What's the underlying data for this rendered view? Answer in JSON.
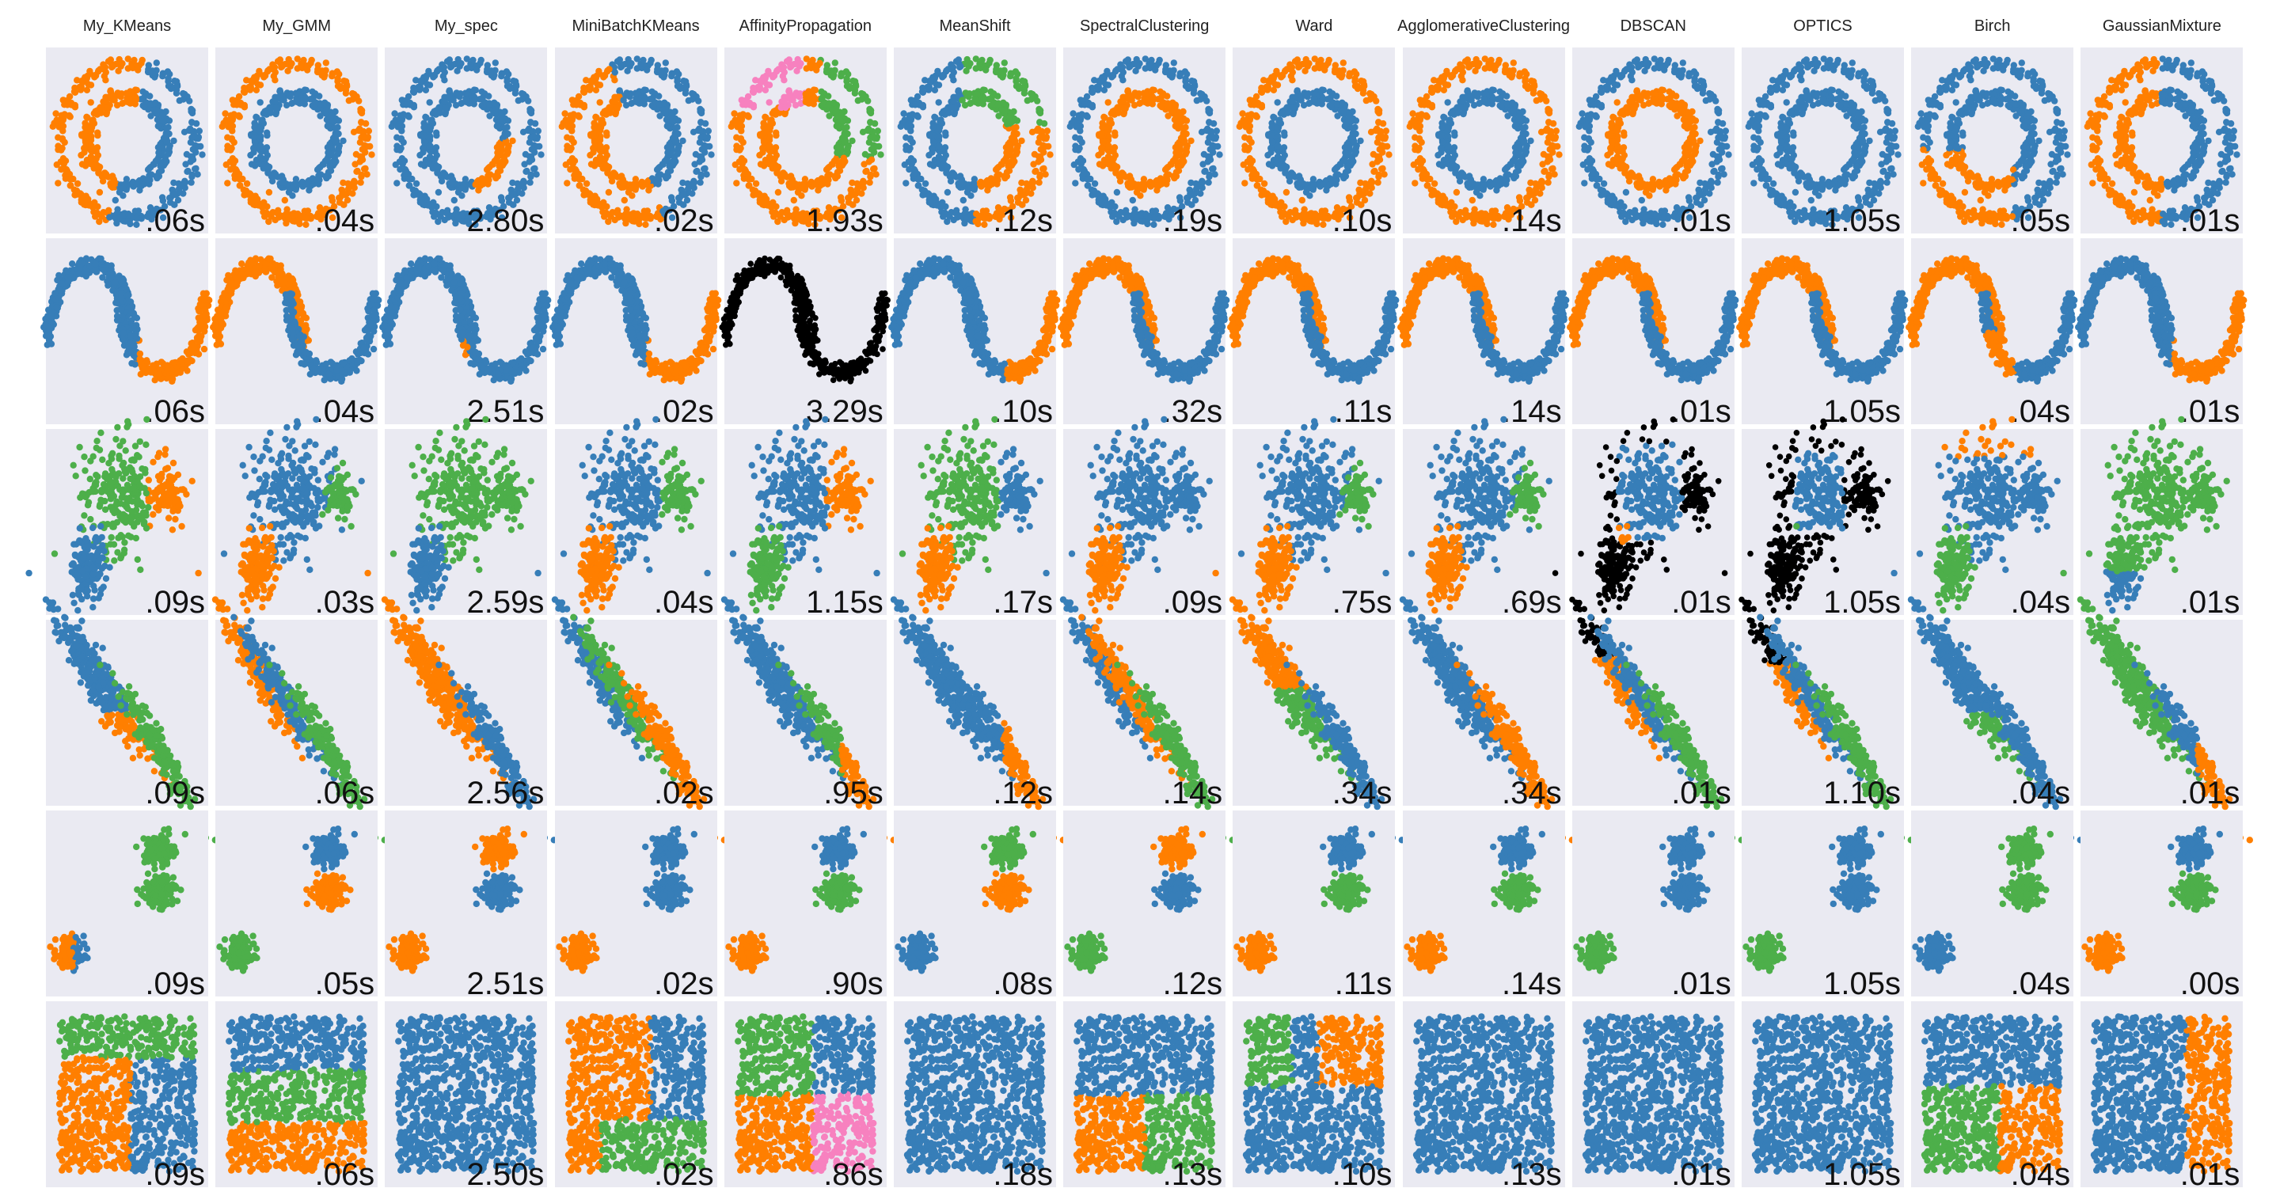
{
  "chart_data": {
    "type": "scatter",
    "title": "",
    "algorithms": [
      "My_KMeans",
      "My_GMM",
      "My_spec",
      "MiniBatchKMeans",
      "AffinityPropagation",
      "MeanShift",
      "SpectralClustering",
      "Ward",
      "AgglomerativeClustering",
      "DBSCAN",
      "OPTICS",
      "Birch",
      "GaussianMixture"
    ],
    "datasets": [
      "noisy_circles",
      "noisy_moons",
      "varied",
      "aniso",
      "blobs",
      "no_structure"
    ],
    "times": [
      [
        ".06s",
        ".04s",
        "2.80s",
        ".02s",
        "1.93s",
        ".12s",
        ".19s",
        ".10s",
        ".14s",
        ".01s",
        "1.05s",
        ".05s",
        ".01s"
      ],
      [
        ".06s",
        ".04s",
        "2.51s",
        ".02s",
        "3.29s",
        ".10s",
        ".32s",
        ".11s",
        ".14s",
        ".01s",
        "1.05s",
        ".04s",
        ".01s"
      ],
      [
        ".09s",
        ".03s",
        "2.59s",
        ".04s",
        "1.15s",
        ".17s",
        ".09s",
        ".75s",
        ".69s",
        ".01s",
        "1.05s",
        ".04s",
        ".01s"
      ],
      [
        ".09s",
        ".06s",
        "2.56s",
        ".02s",
        ".95s",
        ".12s",
        ".14s",
        ".34s",
        ".34s",
        ".01s",
        "1.10s",
        ".04s",
        ".01s"
      ],
      [
        ".09s",
        ".05s",
        "2.51s",
        ".02s",
        ".90s",
        ".08s",
        ".12s",
        ".11s",
        ".14s",
        ".01s",
        "1.05s",
        ".04s",
        ".00s"
      ],
      [
        ".09s",
        ".06s",
        "2.50s",
        ".02s",
        ".86s",
        ".18s",
        ".13s",
        ".10s",
        ".13s",
        ".01s",
        "1.05s",
        ".04s",
        ".01s"
      ]
    ],
    "cluster_colors": [
      "#377eb8",
      "#ff7f00",
      "#4daf4a",
      "#f781bf",
      "#a65628",
      "#984ea3",
      "#999999",
      "#e41a1c",
      "#dede00"
    ],
    "noise_color": "#000000",
    "panel_background": "#eaeaf2",
    "grid": false
  }
}
